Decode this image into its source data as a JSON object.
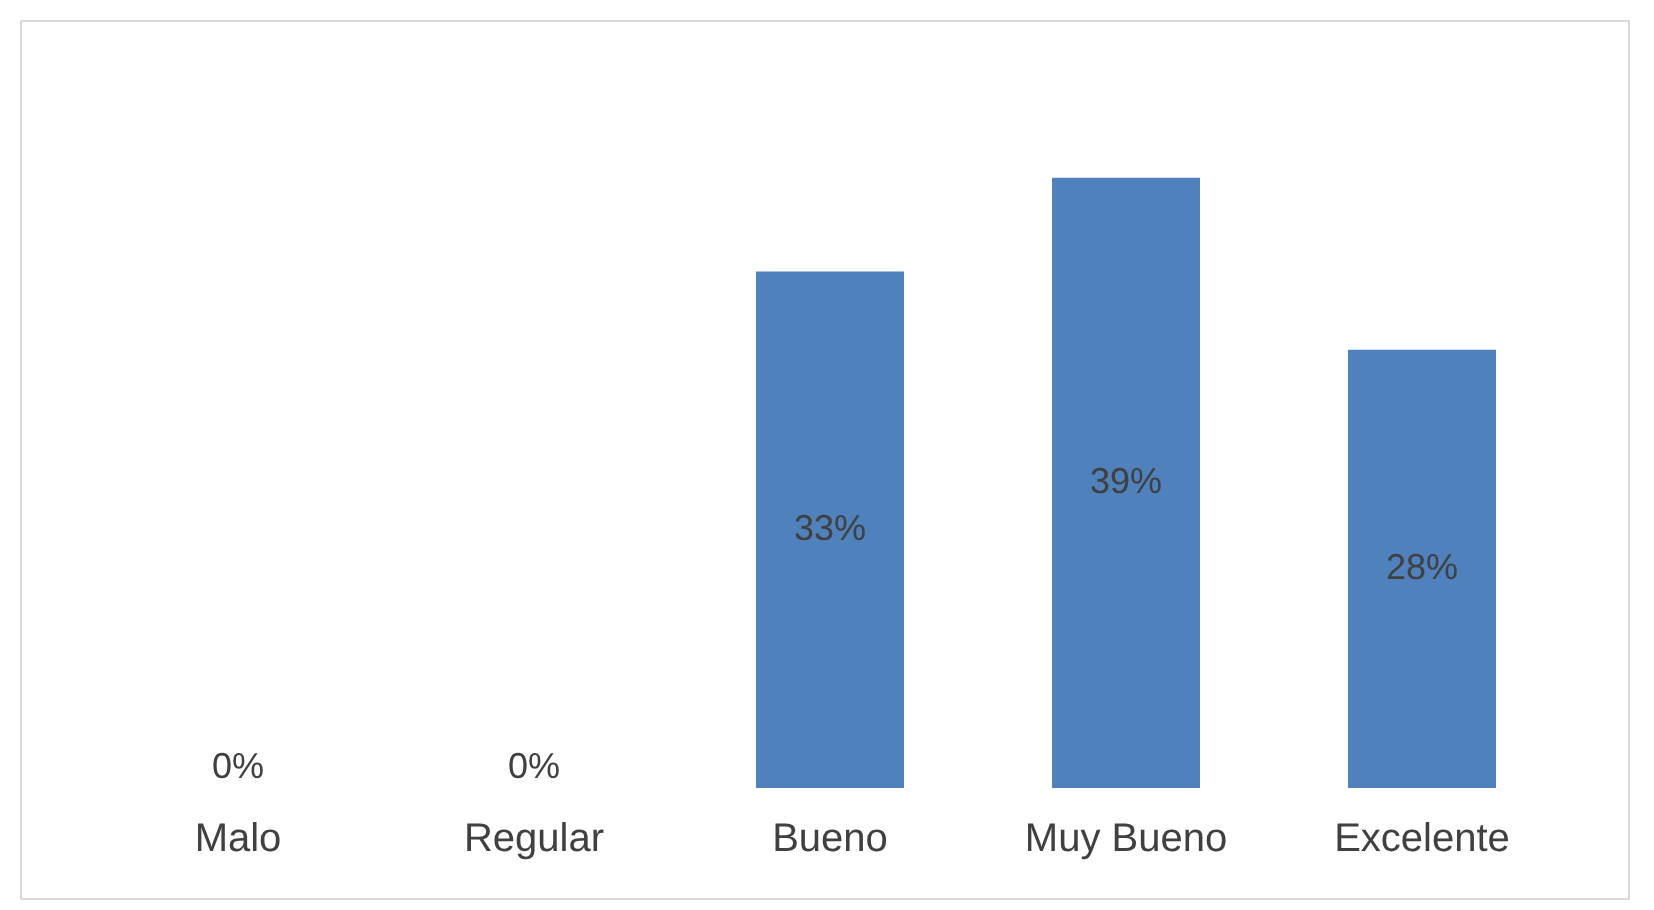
{
  "chart_data": {
    "type": "bar",
    "categories": [
      "Malo",
      "Regular",
      "Bueno",
      "Muy Bueno",
      "Excelente"
    ],
    "values": [
      0,
      0,
      33,
      39,
      28
    ],
    "value_labels": [
      "0%",
      "0%",
      "33%",
      "39%",
      "28%"
    ],
    "color": "#4f81bd",
    "grid": false,
    "legend": false,
    "tick_labels": "x"
  }
}
